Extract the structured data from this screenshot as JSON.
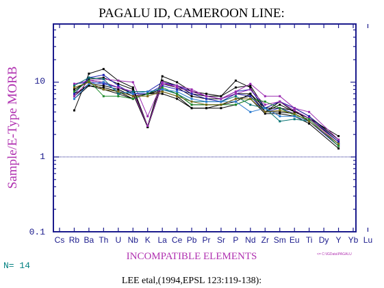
{
  "chart_data": {
    "type": "line",
    "title": "PAGALU ID, CAMEROON LINE:",
    "xlabel": "INCOMPATIBLE ELEMENTS",
    "ylabel": "Sample/E-Type MORB",
    "y_scale": "log",
    "ylim": [
      0.1,
      60
    ],
    "y_ticks": [
      {
        "value": 0.1,
        "label": "0.1"
      },
      {
        "value": 1,
        "label": "1"
      },
      {
        "value": 10,
        "label": "10"
      }
    ],
    "reference_line": 1,
    "grid": false,
    "categories": [
      "Cs",
      "Rb",
      "Ba",
      "Th",
      "U",
      "Nb",
      "K",
      "La",
      "Ce",
      "Pb",
      "Pr",
      "Sr",
      "P",
      "Nd",
      "Zr",
      "Sm",
      "Eu",
      "Ti",
      "Dy",
      "Y",
      "Yb",
      "Lu"
    ],
    "n_label": "N= 14",
    "path_note": "<= C:\\IGData\\PAGALU",
    "citation": "LEE etal,(1994,EPSL 123:119-138):",
    "colors": {
      "title": "#000000",
      "ylabel": "#b030b0",
      "xlabel": "#b030b0",
      "axis": "#1a1a8c",
      "ticks_labels": "#1a1a8c",
      "n_label": "#008080",
      "path_note": "#b030b0",
      "reference_line": "#1a1a8c"
    },
    "series": [
      {
        "color": "#000000",
        "values": [
          null,
          4.2,
          13.0,
          15.0,
          10.5,
          8.5,
          2.6,
          12.0,
          10.0,
          7.5,
          7.0,
          6.5,
          10.5,
          8.5,
          4.0,
          5.5,
          4.0,
          3.3,
          null,
          1.9,
          null,
          null
        ]
      },
      {
        "color": "#000000",
        "values": [
          null,
          7.5,
          11.0,
          11.5,
          9.5,
          8.0,
          2.5,
          10.5,
          9.0,
          7.0,
          6.5,
          6.5,
          8.5,
          9.0,
          4.5,
          5.5,
          4.5,
          3.5,
          null,
          1.7,
          null,
          null
        ]
      },
      {
        "color": "#000000",
        "values": [
          null,
          8.0,
          10.5,
          10.0,
          8.5,
          7.0,
          2.5,
          9.5,
          8.5,
          6.5,
          6.0,
          6.0,
          7.0,
          7.0,
          4.0,
          5.0,
          4.0,
          3.3,
          null,
          1.6,
          null,
          null
        ]
      },
      {
        "color": "#000000",
        "values": [
          null,
          6.5,
          9.5,
          9.0,
          8.0,
          6.5,
          7.0,
          8.0,
          7.0,
          5.0,
          5.0,
          5.0,
          5.5,
          7.0,
          4.5,
          4.5,
          4.2,
          3.0,
          null,
          1.5,
          null,
          null
        ]
      },
      {
        "color": "#000000",
        "values": [
          null,
          6.0,
          9.0,
          8.0,
          7.0,
          6.0,
          7.0,
          7.5,
          6.5,
          4.5,
          4.5,
          5.0,
          6.0,
          6.5,
          4.0,
          4.0,
          3.8,
          3.0,
          null,
          1.4,
          null,
          null
        ]
      },
      {
        "color": "#000000",
        "values": [
          null,
          7.0,
          9.0,
          8.5,
          7.5,
          6.0,
          7.0,
          7.0,
          6.0,
          4.5,
          4.5,
          4.5,
          5.0,
          6.0,
          3.8,
          3.8,
          3.5,
          2.8,
          null,
          1.3,
          null,
          null
        ]
      },
      {
        "color": "#1e1eb0",
        "values": [
          null,
          9.5,
          10.0,
          9.5,
          8.5,
          7.5,
          7.5,
          10.0,
          9.0,
          7.5,
          6.5,
          6.0,
          7.5,
          8.0,
          4.5,
          5.5,
          4.5,
          3.5,
          null,
          1.6,
          null,
          null
        ]
      },
      {
        "color": "#1e1eb0",
        "values": [
          null,
          7.0,
          11.5,
          12.5,
          9.0,
          7.0,
          7.0,
          9.0,
          8.0,
          7.0,
          6.0,
          5.5,
          7.0,
          6.5,
          4.0,
          4.5,
          3.8,
          3.0,
          null,
          1.4,
          null,
          null
        ]
      },
      {
        "color": "#9a2ab0",
        "values": [
          null,
          9.5,
          10.5,
          11.0,
          10.5,
          10.0,
          3.5,
          10.0,
          8.5,
          7.5,
          6.5,
          6.0,
          7.5,
          9.5,
          6.5,
          6.5,
          4.5,
          4.0,
          null,
          1.7,
          null,
          null
        ]
      },
      {
        "color": "#9a2ab0",
        "values": [
          null,
          6.5,
          10.5,
          10.0,
          8.5,
          7.5,
          2.6,
          9.5,
          9.0,
          8.0,
          6.5,
          6.0,
          7.0,
          8.0,
          5.0,
          5.5,
          4.2,
          3.3,
          null,
          1.5,
          null,
          null
        ]
      },
      {
        "color": "#007070",
        "values": [
          null,
          9.0,
          11.5,
          11.0,
          7.0,
          7.5,
          7.5,
          8.0,
          7.0,
          5.5,
          5.5,
          5.5,
          6.5,
          5.0,
          4.5,
          3.0,
          3.2,
          3.0,
          null,
          1.5,
          null,
          null
        ]
      },
      {
        "color": "#1d8c2a",
        "values": [
          null,
          7.5,
          10.5,
          6.5,
          6.5,
          6.0,
          7.0,
          8.5,
          7.0,
          5.0,
          5.0,
          5.0,
          5.0,
          6.0,
          5.5,
          4.5,
          3.6,
          3.2,
          null,
          1.4,
          null,
          null
        ]
      },
      {
        "color": "#2a7ad0",
        "values": [
          null,
          6.0,
          9.5,
          10.0,
          7.5,
          7.0,
          7.5,
          8.0,
          7.5,
          6.0,
          5.5,
          5.5,
          5.5,
          4.0,
          4.5,
          3.5,
          3.5,
          3.0,
          null,
          1.5,
          null,
          null
        ]
      },
      {
        "color": "#7a6a10",
        "values": [
          null,
          8.5,
          10.0,
          8.0,
          7.5,
          6.5,
          6.5,
          7.5,
          6.5,
          5.5,
          5.0,
          5.0,
          6.0,
          6.0,
          4.0,
          4.2,
          3.8,
          3.0,
          null,
          1.5,
          null,
          null
        ]
      }
    ]
  }
}
